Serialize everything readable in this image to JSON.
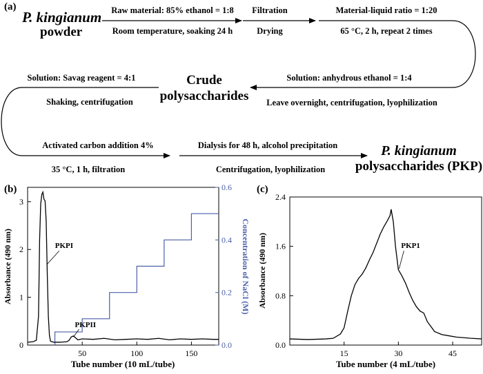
{
  "flowchart": {
    "panel_label": "(a)",
    "start_line1": "P. kingianum",
    "start_line2": "powder",
    "step1_top": "Raw material: 85% ethanol = 1:8",
    "step1_bottom": "Room temperature, soaking 24 h",
    "step2_top": "Filtration",
    "step2_bottom": "Drying",
    "step3_top": "Material-liquid ratio = 1:20",
    "step3_bottom": "65 °C, 2 h, repeat 2 times",
    "step4_top": "Solution: anhydrous ethanol = 1:4",
    "step4_bottom": "Leave overnight, centrifugation, lyophilization",
    "crude_line1": "Crude",
    "crude_line2": "polysaccharides",
    "step5_top": "Solution: Savag reagent = 4:1",
    "step5_bottom": "Shaking, centrifugation",
    "step6_top": "Activated carbon addition 4%",
    "step6_bottom": "35 °C, 1 h, filtration",
    "step7_top": "Dialysis for 48 h, alcohol precipitation",
    "step7_bottom": "Centrifugation, lyophilization",
    "end_line1": "P. kingianum",
    "end_line2": "polysaccharides (PKP)"
  },
  "chart_data": [
    {
      "panel_label": "(b)",
      "type": "line",
      "xlabel": "Tube number (10 mL/tube)",
      "ylabel": "Absorbance (490 nm)",
      "y2label": "Concentration of NaCl (M)",
      "xlim": [
        0,
        175
      ],
      "ylim": [
        0,
        3.3
      ],
      "y2lim": [
        0,
        0.6
      ],
      "xticks": [
        50,
        100,
        150
      ],
      "yticks": [
        0,
        1,
        2,
        3
      ],
      "y2ticks": [
        0.0,
        0.2,
        0.4,
        0.6
      ],
      "annotations": [
        {
          "text": "PKPI",
          "x": 15,
          "y": 2.0
        },
        {
          "text": "PKPII",
          "x": 42,
          "y": 0.2
        }
      ],
      "series": [
        {
          "name": "Absorbance",
          "color": "#000000",
          "axis": "left",
          "points": [
            [
              0,
              0.06
            ],
            [
              5,
              0.07
            ],
            [
              8,
              0.1
            ],
            [
              10,
              0.6
            ],
            [
              11,
              2.2
            ],
            [
              12,
              2.95
            ],
            [
              13,
              3.15
            ],
            [
              14,
              3.2
            ],
            [
              15,
              3.05
            ],
            [
              16,
              3.02
            ],
            [
              17,
              2.6
            ],
            [
              18,
              1.5
            ],
            [
              19,
              0.6
            ],
            [
              20,
              0.2
            ],
            [
              21,
              0.08
            ],
            [
              24,
              0.06
            ],
            [
              30,
              0.06
            ],
            [
              36,
              0.07
            ],
            [
              38,
              0.1
            ],
            [
              40,
              0.17
            ],
            [
              42,
              0.19
            ],
            [
              44,
              0.15
            ],
            [
              46,
              0.11
            ],
            [
              50,
              0.13
            ],
            [
              60,
              0.12
            ],
            [
              70,
              0.14
            ],
            [
              80,
              0.11
            ],
            [
              90,
              0.12
            ],
            [
              100,
              0.13
            ],
            [
              110,
              0.12
            ],
            [
              120,
              0.14
            ],
            [
              130,
              0.11
            ],
            [
              140,
              0.13
            ],
            [
              150,
              0.12
            ],
            [
              160,
              0.13
            ],
            [
              170,
              0.12
            ],
            [
              175,
              0.12
            ]
          ]
        },
        {
          "name": "NaCl concentration",
          "color": "#4a5fa8",
          "axis": "right",
          "points": [
            [
              25,
              0
            ],
            [
              25,
              0.05
            ],
            [
              50,
              0.05
            ],
            [
              50,
              0.1
            ],
            [
              75,
              0.1
            ],
            [
              75,
              0.2
            ],
            [
              100,
              0.2
            ],
            [
              100,
              0.3
            ],
            [
              125,
              0.3
            ],
            [
              125,
              0.4
            ],
            [
              150,
              0.4
            ],
            [
              150,
              0.5
            ],
            [
              175,
              0.5
            ]
          ]
        }
      ]
    },
    {
      "panel_label": "(c)",
      "type": "line",
      "xlabel": "Tube number (4 mL/tube)",
      "ylabel": "Absorbance (490 nm)",
      "xlim": [
        0,
        53
      ],
      "ylim": [
        0,
        2.4
      ],
      "xticks": [
        15,
        30,
        45
      ],
      "yticks": [
        0.0,
        0.8,
        1.6,
        2.4
      ],
      "annotations": [
        {
          "text": "PKP1",
          "x": 30,
          "y": 1.55
        }
      ],
      "series": [
        {
          "name": "Absorbance",
          "color": "#000000",
          "points": [
            [
              0,
              0.1
            ],
            [
              5,
              0.09
            ],
            [
              10,
              0.1
            ],
            [
              12,
              0.11
            ],
            [
              14,
              0.18
            ],
            [
              15,
              0.28
            ],
            [
              16,
              0.55
            ],
            [
              17,
              0.8
            ],
            [
              18,
              0.98
            ],
            [
              19,
              1.08
            ],
            [
              20,
              1.15
            ],
            [
              21,
              1.25
            ],
            [
              22,
              1.38
            ],
            [
              23,
              1.5
            ],
            [
              24,
              1.65
            ],
            [
              25,
              1.8
            ],
            [
              26,
              1.92
            ],
            [
              27,
              2.02
            ],
            [
              27.7,
              2.1
            ],
            [
              28,
              2.2
            ],
            [
              28.6,
              2.0
            ],
            [
              29.2,
              1.6
            ],
            [
              30,
              1.22
            ],
            [
              31,
              1.12
            ],
            [
              32,
              1.0
            ],
            [
              33,
              0.85
            ],
            [
              34,
              0.72
            ],
            [
              35,
              0.62
            ],
            [
              36,
              0.55
            ],
            [
              37,
              0.52
            ],
            [
              38,
              0.38
            ],
            [
              39,
              0.3
            ],
            [
              40,
              0.22
            ],
            [
              42,
              0.17
            ],
            [
              44,
              0.15
            ],
            [
              46,
              0.13
            ],
            [
              48,
              0.12
            ],
            [
              50,
              0.11
            ],
            [
              53,
              0.1
            ]
          ]
        }
      ]
    }
  ]
}
